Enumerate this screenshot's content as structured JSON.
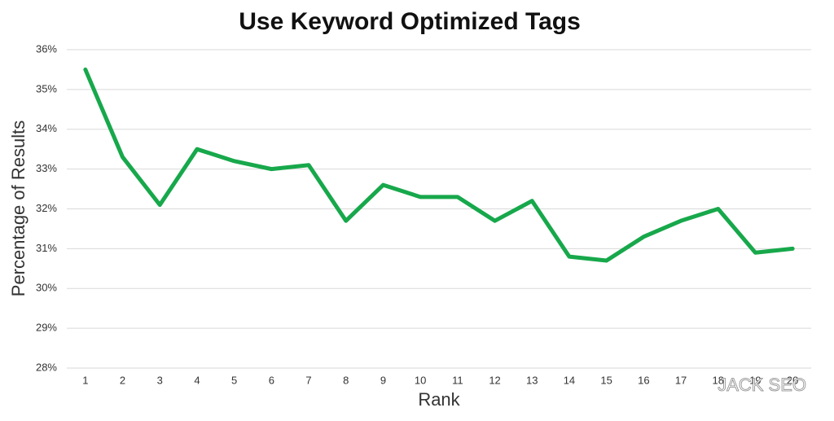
{
  "chart_data": {
    "type": "line",
    "title": "Use Keyword Optimized Tags",
    "x_label": "Rank",
    "y_label": "Percentage of Results",
    "categories": [
      "1",
      "2",
      "3",
      "4",
      "5",
      "6",
      "7",
      "8",
      "9",
      "10",
      "11",
      "12",
      "13",
      "14",
      "15",
      "16",
      "17",
      "18",
      "19",
      "20"
    ],
    "values": [
      35.5,
      33.3,
      32.1,
      33.5,
      33.2,
      33.0,
      33.1,
      31.7,
      32.6,
      32.3,
      32.3,
      31.7,
      32.2,
      30.8,
      30.7,
      31.3,
      31.7,
      32.0,
      30.9,
      31.0
    ],
    "color": "#17a84b",
    "ylim": [
      28,
      36
    ],
    "yticks": [
      {
        "value": 28,
        "label": "28%"
      },
      {
        "value": 29,
        "label": "29%"
      },
      {
        "value": 30,
        "label": "30%"
      },
      {
        "value": 31,
        "label": "31%"
      },
      {
        "value": 32,
        "label": "32%"
      },
      {
        "value": 33,
        "label": "33%"
      },
      {
        "value": 34,
        "label": "34%"
      },
      {
        "value": 35,
        "label": "35%"
      },
      {
        "value": 36,
        "label": "36%"
      }
    ],
    "grid": true,
    "watermark": "JACK SEO"
  }
}
